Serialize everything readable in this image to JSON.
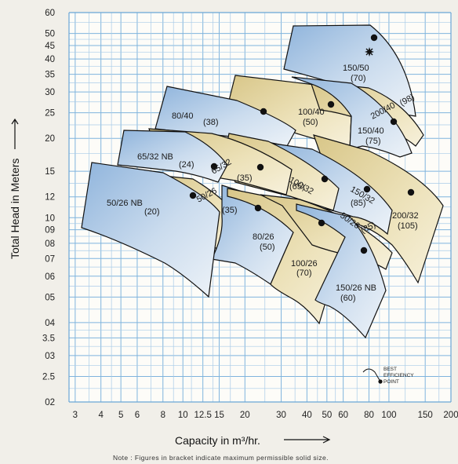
{
  "chart_data": {
    "type": "scatter",
    "xlabel": "Capacity in m³/hr.",
    "ylabel": "Total Head in Meters",
    "x_scale": "log",
    "y_scale": "log",
    "xlim": [
      2.8,
      200
    ],
    "ylim": [
      2,
      60
    ],
    "x_ticks": [
      "3",
      "4",
      "5",
      "6",
      "8",
      "10",
      "12.5",
      "15",
      "20",
      "30",
      "40",
      "50",
      "60",
      "80",
      "100",
      "150",
      "200"
    ],
    "x_tick_values": [
      3,
      4,
      5,
      6,
      8,
      10,
      12.5,
      15,
      20,
      30,
      40,
      50,
      60,
      80,
      100,
      150,
      200
    ],
    "y_ticks": [
      "60",
      "50",
      "45",
      "40",
      "35",
      "30",
      "25",
      "20",
      "15",
      "12",
      "10",
      "09",
      "08",
      "07",
      "06",
      "05",
      "04",
      "3.5",
      "03",
      "2.5",
      "02"
    ],
    "y_tick_values": [
      60,
      50,
      45,
      40,
      35,
      30,
      25,
      20,
      15,
      12,
      10,
      9,
      8,
      7,
      6,
      5,
      4,
      3.5,
      3,
      2.5,
      2
    ],
    "grid": true,
    "note": "Note : Figures in bracket indicate maximum permissible solid size.",
    "legend": {
      "label_line1": "BEST",
      "label_line2": "EFFICIENCY",
      "label_line3": "POINT",
      "placement": "bottom-right"
    },
    "series": [
      {
        "name": "150/50",
        "size": "(70)",
        "color": "blue",
        "bep": [
          86,
          47
        ]
      },
      {
        "name": "80/40",
        "size": "(38)",
        "color": "blue",
        "bep": [
          25,
          25
        ]
      },
      {
        "name": "100/40",
        "size": "(50)",
        "color": "tan",
        "bep": [
          55,
          27
        ]
      },
      {
        "name": "200/40",
        "size": "(98)",
        "color": "tan",
        "bep": [
          95,
          23
        ]
      },
      {
        "name": "150/40",
        "size": "(75)",
        "color": "blue",
        "bep": [
          105,
          23
        ]
      },
      {
        "name": "65/32 NB",
        "size": "(24)",
        "color": "blue",
        "bep": [
          15,
          15
        ]
      },
      {
        "name": "65/32",
        "size": "(35)",
        "color": "tan",
        "bep": [
          25,
          15
        ]
      },
      {
        "name": "100/32",
        "size": "(65)",
        "color": "tan",
        "bep": [
          47,
          13.5
        ]
      },
      {
        "name": "150/32",
        "size": "(85)",
        "color": "blue",
        "bep": [
          75,
          12.3
        ]
      },
      {
        "name": "200/32",
        "size": "(105)",
        "color": "tan",
        "bep": [
          122,
          12
        ]
      },
      {
        "name": "50/26 NB",
        "size": "(20)",
        "color": "blue",
        "bep": [
          12.5,
          11.8
        ]
      },
      {
        "name": "50/26",
        "size": "(35)",
        "color": "tan",
        "bep": [
          12.5,
          11.8
        ]
      },
      {
        "name": "80/26",
        "size": "(50)",
        "color": "blue",
        "bep": [
          25,
          10.5
        ]
      },
      {
        "name": "100/26",
        "size": "(70)",
        "color": "tan",
        "bep": [
          50,
          9.3
        ]
      },
      {
        "name": "50/26",
        "size": "(85)",
        "color": "tan",
        "bep": [
          50,
          9.3
        ]
      },
      {
        "name": "150/26 NB",
        "size": "(60)",
        "color": "blue",
        "bep": [
          80,
          7.2
        ]
      }
    ]
  }
}
